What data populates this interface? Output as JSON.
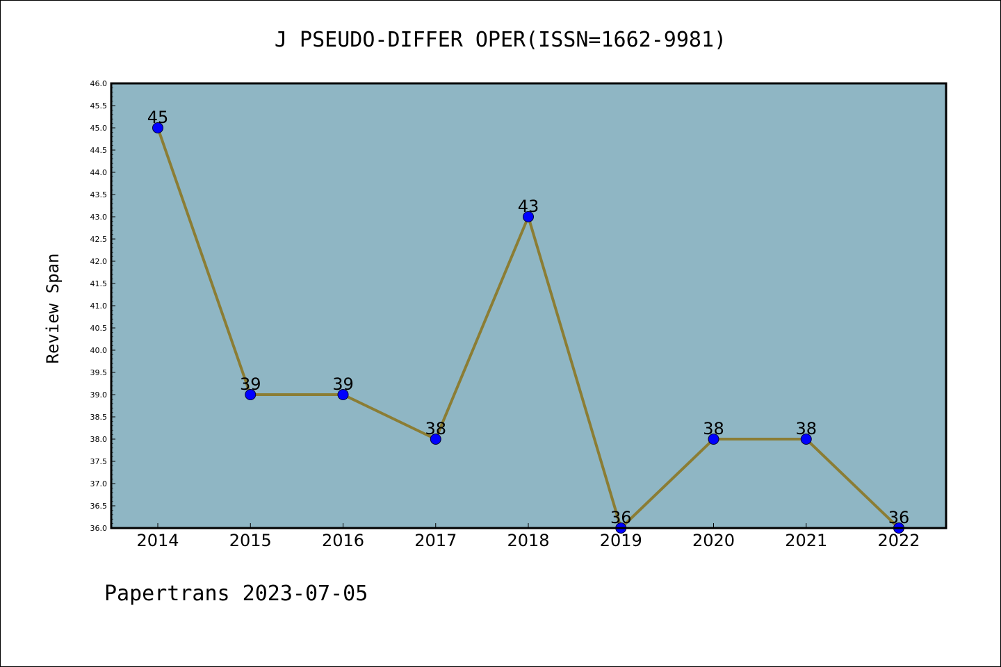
{
  "chart_data": {
    "type": "line",
    "title": "J PSEUDO-DIFFER OPER(ISSN=1662-9981)",
    "xlabel": "",
    "ylabel": "Review Span",
    "categories": [
      "2014",
      "2015",
      "2016",
      "2017",
      "2018",
      "2019",
      "2020",
      "2021",
      "2022"
    ],
    "series": [
      {
        "values": [
          45,
          39,
          39,
          38,
          43,
          36,
          38,
          38,
          36
        ]
      }
    ],
    "data_labels": [
      "45",
      "39",
      "39",
      "38",
      "43",
      "36",
      "38",
      "38",
      "36"
    ],
    "ylim": [
      36.0,
      46.0
    ],
    "yticks": [
      "36.0",
      "36.5",
      "37.0",
      "37.5",
      "38.0",
      "38.5",
      "39.0",
      "39.5",
      "40.0",
      "40.5",
      "41.0",
      "41.5",
      "42.0",
      "42.5",
      "43.0",
      "43.5",
      "44.0",
      "44.5",
      "45.0",
      "45.5",
      "46.0"
    ],
    "grid": false,
    "legend": "none",
    "colors": {
      "plot_background": "#8fb6c4",
      "line": "#8b7d34",
      "marker": "#0000ff"
    }
  },
  "footer": {
    "text": "Papertrans 2023-07-05"
  }
}
